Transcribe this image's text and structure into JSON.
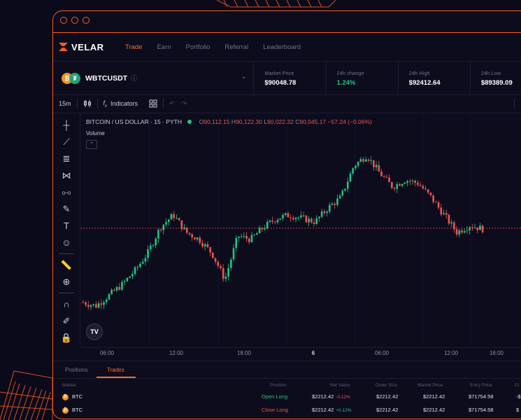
{
  "colors": {
    "accent": "#ff5a1f",
    "up": "#26c281",
    "down": "#ef5350",
    "background": "#0c0c1d"
  },
  "brand": {
    "name": "VELAR",
    "logo_icon": "velar-logo-icon"
  },
  "nav": {
    "items": [
      {
        "label": "Trade",
        "active": true
      },
      {
        "label": "Earn"
      },
      {
        "label": "Portfolio"
      },
      {
        "label": "Referral"
      },
      {
        "label": "Leaderboard"
      }
    ]
  },
  "market": {
    "pair": "WBTCUSDT",
    "stats": [
      {
        "label": "Market Price",
        "value": "$90048.78"
      },
      {
        "label": "24h change",
        "value": "1.24%"
      },
      {
        "label": "24h High",
        "value": "$92412.64"
      },
      {
        "label": "24h Low",
        "value": "$89389.09"
      }
    ]
  },
  "toolbar": {
    "interval": "15m",
    "indicators": "Indicators"
  },
  "chart_legend": {
    "title": "BITCOIN / US DOLLAR · 15 · PYTH",
    "o_key": "O",
    "o": "90,112.15",
    "h_key": "H",
    "h": "90,122.30",
    "l_key": "L",
    "l": "90,022.32",
    "c_key": "C",
    "c": "90,045.17",
    "change": "−57.24 (−0.06%)",
    "volume_label": "Volume"
  },
  "chart_data": {
    "type": "candlestick",
    "x_ticks": [
      "06:00",
      "12:00",
      "18:00",
      "6",
      "06:00",
      "12:00",
      "16:00"
    ],
    "current_price_line": true,
    "close_path": [
      0.12,
      0.1,
      0.16,
      0.22,
      0.3,
      0.4,
      0.55,
      0.62,
      0.52,
      0.48,
      0.4,
      0.25,
      0.5,
      0.48,
      0.55,
      0.6,
      0.62,
      0.6,
      0.58,
      0.66,
      0.72,
      0.9,
      0.96,
      0.86,
      0.78,
      0.82,
      0.8,
      0.72,
      0.62,
      0.52,
      0.56,
      0.54
    ]
  },
  "bottom": {
    "tabs": [
      {
        "label": "Positions"
      },
      {
        "label": "Trades",
        "active": true
      }
    ],
    "columns": [
      "Market",
      "Position",
      "Net Value",
      "Order Size",
      "Market Price",
      "Entry Price",
      "Cl"
    ],
    "rows": [
      {
        "market": "BTC",
        "position": "Open Long",
        "net_value": "$2212.42",
        "change": "-0.12%",
        "order_size": "$2212.42",
        "market_price": "$2212.42",
        "entry_price": "$71754.58",
        "close": "-$"
      },
      {
        "market": "BTC",
        "position": "Close Long",
        "net_value": "$2212.42",
        "change": "+0.12%",
        "order_size": "$2212.42",
        "market_price": "$2212.42",
        "entry_price": "$71754.58",
        "close": "$"
      }
    ]
  }
}
